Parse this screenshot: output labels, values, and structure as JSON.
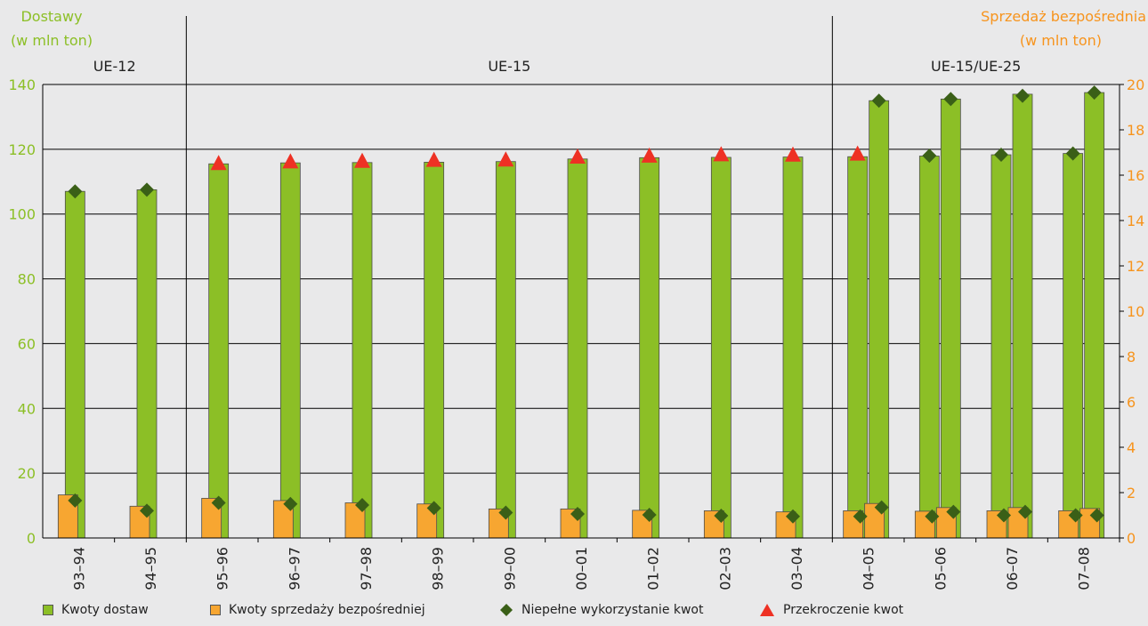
{
  "chart_data": {
    "type": "bar",
    "left_axis": {
      "label_line1": "Dostawy",
      "label_line2": "(w mln ton)",
      "ylim": [
        0,
        140
      ],
      "ticks": [
        0,
        20,
        40,
        60,
        80,
        100,
        120,
        140
      ],
      "color": "#8cbf26"
    },
    "right_axis": {
      "label_line1": "Sprzedaż bezpośrednia",
      "label_line2": "(w mln ton)",
      "ylim": [
        0,
        20
      ],
      "ticks": [
        0,
        2,
        4,
        6,
        8,
        10,
        12,
        14,
        16,
        18,
        20
      ],
      "color": "#f7941d"
    },
    "regions": [
      {
        "label": "UE-12",
        "first": 0,
        "last": 1
      },
      {
        "label": "UE-15",
        "first": 2,
        "last": 10
      },
      {
        "label": "UE-15/UE-25",
        "first": 11,
        "last": 14
      }
    ],
    "categories": [
      "93–94",
      "94–95",
      "95–96",
      "96–97",
      "97–98",
      "98–99",
      "99–00",
      "00–01",
      "01–02",
      "02–03",
      "03–04",
      "04–05",
      "05–06",
      "06–07",
      "07–08"
    ],
    "series": [
      {
        "name": "Kwoty dostaw",
        "axis": "left",
        "values": [
          107,
          107.5,
          115.5,
          115.8,
          115.9,
          116,
          116.2,
          117,
          117.4,
          117.5,
          117.6,
          117.7,
          117.9,
          118.3,
          118.7
        ],
        "values_second": [
          null,
          null,
          null,
          null,
          null,
          null,
          null,
          null,
          null,
          null,
          null,
          135,
          135.5,
          137,
          137.5
        ]
      },
      {
        "name": "Kwoty sprzedaży bezpośredniej",
        "axis": "right",
        "values": [
          1.9,
          1.4,
          1.75,
          1.65,
          1.55,
          1.5,
          1.28,
          1.28,
          1.22,
          1.2,
          1.15,
          1.2,
          1.18,
          1.2,
          1.2
        ],
        "values_second": [
          null,
          null,
          null,
          null,
          null,
          null,
          null,
          null,
          null,
          null,
          null,
          1.52,
          1.34,
          1.34,
          1.3
        ]
      },
      {
        "name": "Niepełne wykorzystanie kwot",
        "marker": "diamond",
        "points": [
          {
            "x": 0,
            "bar": "delivery",
            "value": 107
          },
          {
            "x": 1,
            "bar": "delivery",
            "value": 107.5
          },
          {
            "x": 11,
            "bar": "delivery2",
            "value": 135
          },
          {
            "x": 12,
            "bar": "delivery",
            "value": 118
          },
          {
            "x": 12,
            "bar": "delivery2",
            "value": 135.5
          },
          {
            "x": 13,
            "bar": "delivery",
            "value": 118.3
          },
          {
            "x": 13,
            "bar": "delivery2",
            "value": 136.5
          },
          {
            "x": 14,
            "bar": "delivery",
            "value": 118.7
          },
          {
            "x": 14,
            "bar": "delivery2",
            "value": 137.5
          },
          {
            "x": 0,
            "bar": "direct",
            "value": 1.65
          },
          {
            "x": 1,
            "bar": "direct",
            "value": 1.2
          },
          {
            "x": 2,
            "bar": "direct",
            "value": 1.55
          },
          {
            "x": 3,
            "bar": "direct",
            "value": 1.5
          },
          {
            "x": 4,
            "bar": "direct",
            "value": 1.45
          },
          {
            "x": 5,
            "bar": "direct",
            "value": 1.32
          },
          {
            "x": 6,
            "bar": "direct",
            "value": 1.12
          },
          {
            "x": 7,
            "bar": "direct",
            "value": 1.06
          },
          {
            "x": 8,
            "bar": "direct",
            "value": 1.02
          },
          {
            "x": 9,
            "bar": "direct",
            "value": 0.98
          },
          {
            "x": 10,
            "bar": "direct",
            "value": 0.95
          },
          {
            "x": 11,
            "bar": "direct",
            "value": 0.95
          },
          {
            "x": 11,
            "bar": "direct2",
            "value": 1.35
          },
          {
            "x": 12,
            "bar": "direct",
            "value": 0.95
          },
          {
            "x": 12,
            "bar": "direct2",
            "value": 1.15
          },
          {
            "x": 13,
            "bar": "direct",
            "value": 1.0
          },
          {
            "x": 13,
            "bar": "direct2",
            "value": 1.15
          },
          {
            "x": 14,
            "bar": "direct",
            "value": 1.0
          },
          {
            "x": 14,
            "bar": "direct2",
            "value": 1.0
          }
        ]
      },
      {
        "name": "Przekroczenie kwot",
        "marker": "triangle",
        "points": [
          {
            "x": 2,
            "bar": "delivery",
            "value": 115.5
          },
          {
            "x": 3,
            "bar": "delivery",
            "value": 116
          },
          {
            "x": 4,
            "bar": "delivery",
            "value": 116.2
          },
          {
            "x": 5,
            "bar": "delivery",
            "value": 116.5
          },
          {
            "x": 6,
            "bar": "delivery",
            "value": 116.6
          },
          {
            "x": 7,
            "bar": "delivery",
            "value": 117.5
          },
          {
            "x": 8,
            "bar": "delivery",
            "value": 117.8
          },
          {
            "x": 9,
            "bar": "delivery",
            "value": 118.2
          },
          {
            "x": 10,
            "bar": "delivery",
            "value": 118.1
          },
          {
            "x": 11,
            "bar": "delivery",
            "value": 118.4
          }
        ]
      }
    ],
    "colors": {
      "delivery": "#8cbf26",
      "direct": "#f7a631",
      "diamond": "#3a5f17",
      "triangle": "#ee3124",
      "grid": "#000000"
    },
    "grid": true,
    "legend_placement": "bottom"
  }
}
